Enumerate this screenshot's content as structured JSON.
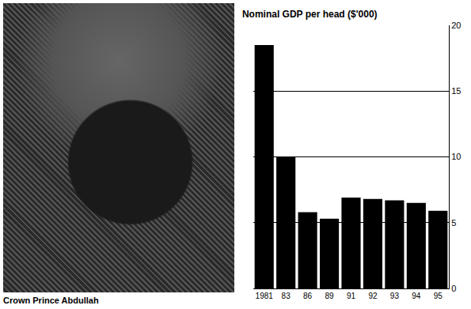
{
  "photo": {
    "caption": "Crown Prince Abdullah"
  },
  "chart_data": {
    "type": "bar",
    "title": "Nominal GDP per head ($'000)",
    "categories": [
      "1981",
      "83",
      "86",
      "89",
      "91",
      "92",
      "93",
      "94",
      "95"
    ],
    "values": [
      18.5,
      10.0,
      5.8,
      5.3,
      6.9,
      6.8,
      6.7,
      6.5,
      5.9
    ],
    "color": "#000000",
    "ylim": [
      0,
      20
    ],
    "yticks": [
      0,
      5,
      10,
      15,
      20
    ],
    "grid": true
  }
}
